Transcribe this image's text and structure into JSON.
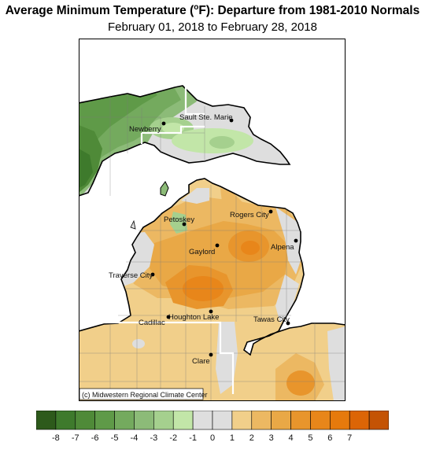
{
  "header": {
    "title_main": "Average Minimum Temperature (",
    "title_sup": "o",
    "title_rest": "F): Departure from 1981-2010 Normals",
    "subtitle": "February 01, 2018 to February 28, 2018"
  },
  "map": {
    "credit": "(c) Midwestern Regional Climate Center",
    "cities": [
      {
        "name": "Newberry"
      },
      {
        "name": "Sault Ste. Marie"
      },
      {
        "name": "Petoskey"
      },
      {
        "name": "Rogers City"
      },
      {
        "name": "Gaylord"
      },
      {
        "name": "Alpena"
      },
      {
        "name": "Traverse City"
      },
      {
        "name": "Houghton Lake"
      },
      {
        "name": "Cadillac"
      },
      {
        "name": "Tawas City"
      },
      {
        "name": "Clare"
      }
    ]
  },
  "legend": {
    "colors": [
      "#2d5a1b",
      "#3e7a2c",
      "#4f8a38",
      "#5f9a48",
      "#74aa5e",
      "#8cbb78",
      "#a5d08e",
      "#c2e6a8",
      "#dedede",
      "#dedede",
      "#f1cf8a",
      "#ecb862",
      "#e9a846",
      "#e8952c",
      "#e8861a",
      "#e67a0c",
      "#dc6506",
      "#c45304"
    ],
    "ticks": [
      "-8",
      "-7",
      "-6",
      "-5",
      "-4",
      "-3",
      "-2",
      "-1",
      "0",
      "1",
      "2",
      "3",
      "4",
      "5",
      "6",
      "7"
    ]
  }
}
